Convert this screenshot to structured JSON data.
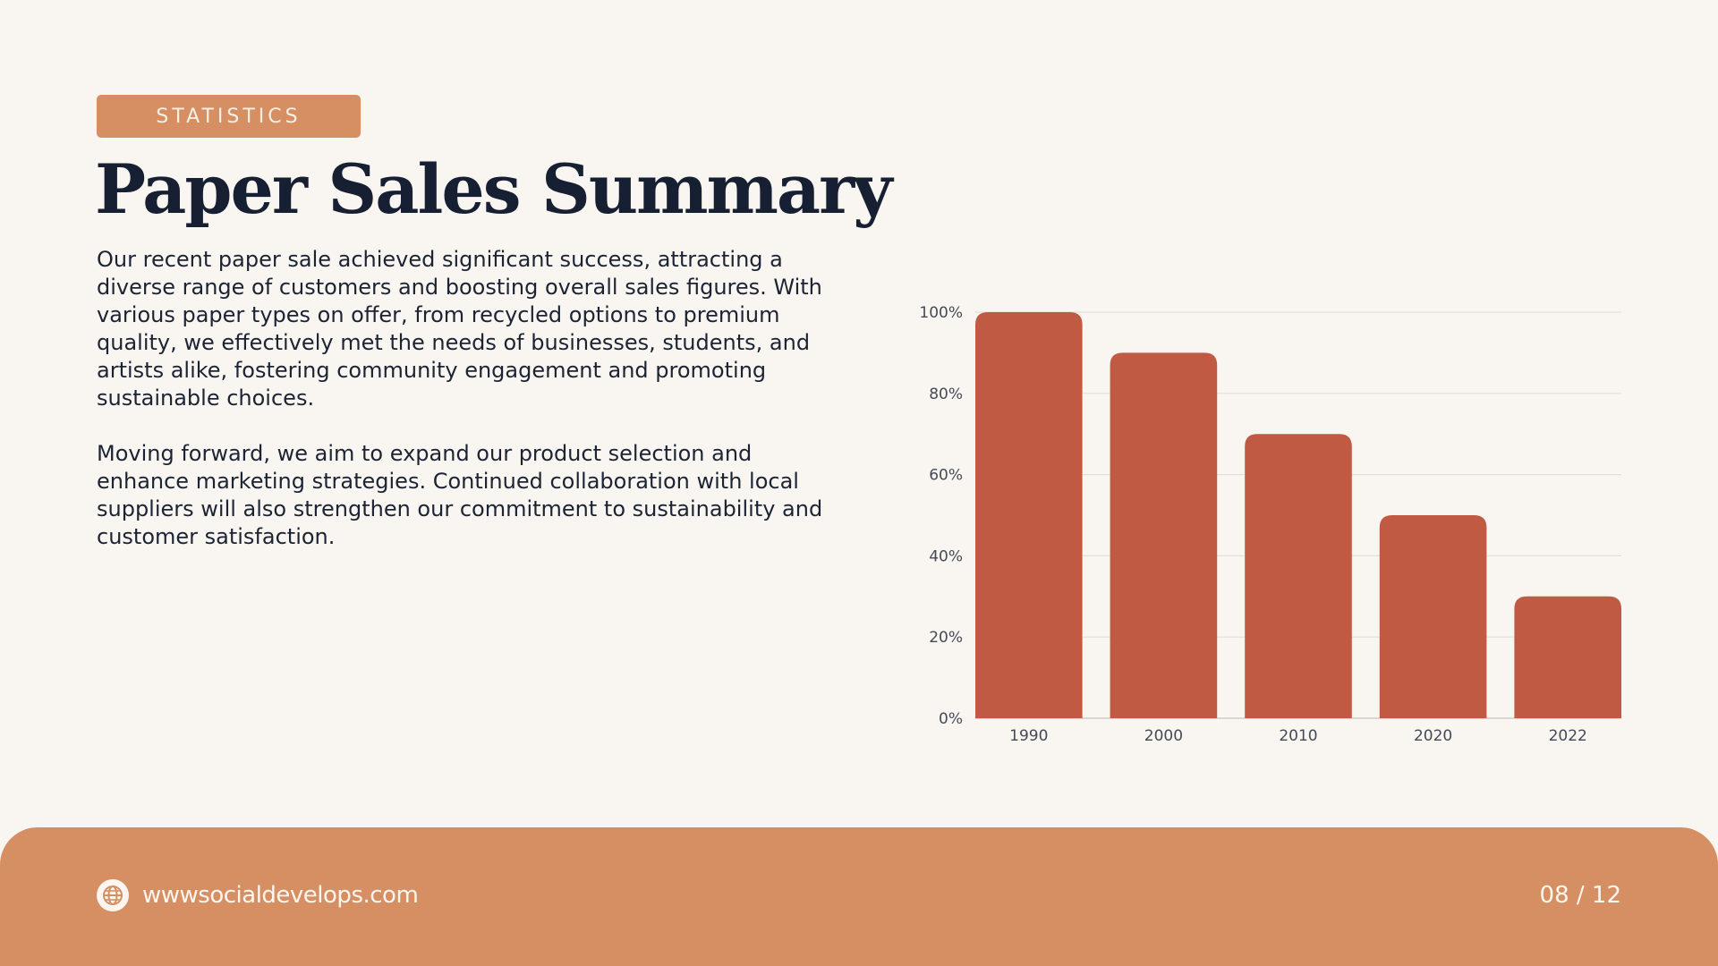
{
  "badge": "STATISTICS",
  "title": "Paper Sales Summary",
  "paragraphs": [
    "Our recent paper sale achieved significant success, attracting a diverse range of customers and boosting overall sales figures. With various paper types on offer, from recycled options to premium quality, we effectively met the needs of businesses, students, and artists alike, fostering community engagement and promoting sustainable choices.",
    "Moving forward, we aim to expand our product selection and enhance marketing strategies. Continued collaboration with local suppliers will also strengthen our commitment to sustainability and customer satisfaction."
  ],
  "footer": {
    "website": "wwwsocialdevelops.com",
    "page": "08 / 12",
    "icon": "globe-icon"
  },
  "colors": {
    "accent": "#d68f63",
    "bar": "#c05a42",
    "title": "#172033",
    "background": "#f9f5f1"
  },
  "chart_data": {
    "type": "bar",
    "categories": [
      "1990",
      "2000",
      "2010",
      "2020",
      "2022"
    ],
    "values": [
      100,
      90,
      70,
      50,
      30
    ],
    "ylim": [
      0,
      100
    ],
    "yticks": [
      0,
      20,
      40,
      60,
      80,
      100
    ],
    "ytick_labels": [
      "0%",
      "20%",
      "40%",
      "60%",
      "80%",
      "100%"
    ],
    "grid": true,
    "title": "",
    "xlabel": "",
    "ylabel": ""
  }
}
